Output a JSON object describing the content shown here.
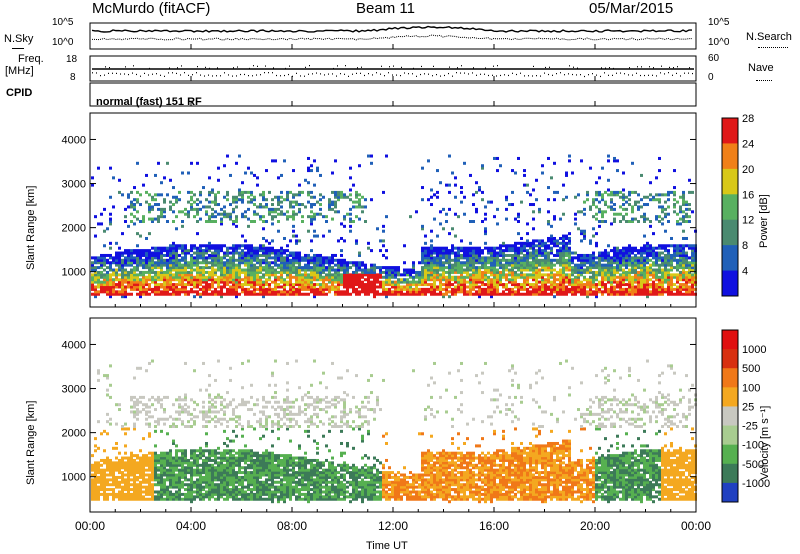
{
  "header": {
    "station": "McMurdo (fitACF)",
    "beam": "Beam 11",
    "date": "05/Mar/2015"
  },
  "noise_panel": {
    "left_label": "N.Sky",
    "right_label": "N.Search",
    "left_ticks": [
      "10^5",
      "10^0"
    ],
    "right_ticks": [
      "10^5",
      "10^0"
    ]
  },
  "freq_panel": {
    "left_label_line1": "Freq.",
    "left_label_line2": "[MHz]",
    "right_label": "Nave",
    "left_ticks": [
      "18",
      "8"
    ],
    "right_ticks": [
      "60",
      "0"
    ]
  },
  "cpid_panel": {
    "label": "CPID",
    "program": "normal (fast) 151 RF"
  },
  "chart_data": [
    {
      "type": "heatmap",
      "quantity": "Power",
      "ylabel": "Slant Range [km]",
      "ylim": [
        200,
        4600
      ],
      "yticks": [
        1000,
        2000,
        3000,
        4000
      ],
      "xlim": [
        0,
        24
      ],
      "colorbar_label": "Power [dB]",
      "colorbar_ticks": [
        "4",
        "8",
        "12",
        "16",
        "20",
        "24",
        "28"
      ],
      "colorbar_colors": [
        "#1010e0",
        "#2060b8",
        "#4a8a70",
        "#58b060",
        "#d8c818",
        "#f08018",
        "#e01818"
      ]
    },
    {
      "type": "heatmap",
      "quantity": "Velocity",
      "ylabel": "Slant Range [km]",
      "ylim": [
        200,
        4600
      ],
      "yticks": [
        1000,
        2000,
        3000,
        4000
      ],
      "xlim": [
        0,
        24
      ],
      "colorbar_label": "Velocity [m s⁻¹]",
      "colorbar_ticks": [
        "1000",
        "500",
        "100",
        "25",
        "-25",
        "-100",
        "-500",
        "-1000"
      ],
      "colorbar_colors": [
        "#2040c0",
        "#3c7a58",
        "#56b050",
        "#a8cc90",
        "#c8c8c0",
        "#f4a820",
        "#f07818",
        "#d83010",
        "#e01010"
      ]
    }
  ],
  "xaxis": {
    "label": "Time UT",
    "ticks": [
      "00:00",
      "04:00",
      "08:00",
      "12:00",
      "16:00",
      "20:00",
      "00:00"
    ]
  }
}
